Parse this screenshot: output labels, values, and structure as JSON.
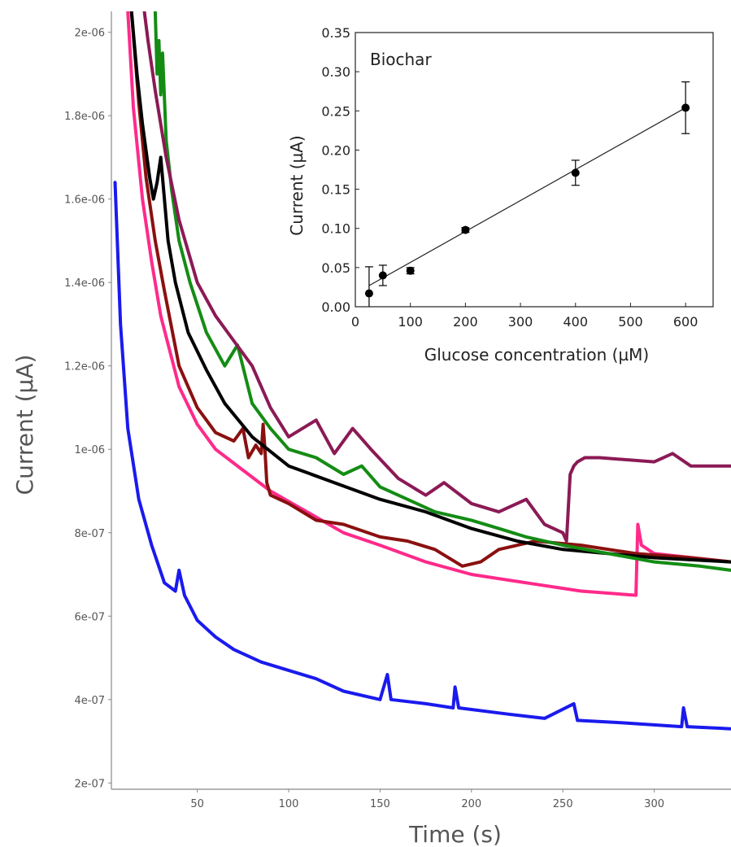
{
  "chart_data": [
    {
      "type": "line",
      "xlabel": "Time (s)",
      "ylabel": "Current (µA)",
      "xlim": [
        3,
        342
      ],
      "ylim": [
        1.85e-07,
        2.05e-06
      ],
      "x_ticks": [
        50,
        100,
        150,
        200,
        250,
        300
      ],
      "x_tick_labels": [
        "50",
        "100",
        "150",
        "200",
        "250",
        "300"
      ],
      "y_ticks": [
        2e-07,
        4e-07,
        6e-07,
        8e-07,
        1e-06,
        1.2e-06,
        1.4e-06,
        1.6e-06,
        1.8e-06,
        2e-06
      ],
      "y_tick_labels": [
        "2e-07",
        "4e-07",
        "6e-07",
        "8e-07",
        "1e-06",
        "1.2e-06",
        "1.4e-06",
        "1.6e-06",
        "1.8e-06",
        "2e-06"
      ],
      "grid": false,
      "series": [
        {
          "color": "#1a1aee",
          "x": [
            5,
            8,
            12,
            18,
            25,
            32,
            38,
            40,
            43,
            50,
            60,
            70,
            85,
            100,
            115,
            130,
            150,
            154,
            156,
            175,
            190,
            191,
            193,
            220,
            240,
            256,
            258,
            280,
            315,
            316,
            318,
            342
          ],
          "y": [
            1.64e-06,
            1.3e-06,
            1.05e-06,
            8.8e-07,
            7.7e-07,
            6.8e-07,
            6.6e-07,
            7.1e-07,
            6.5e-07,
            5.9e-07,
            5.5e-07,
            5.2e-07,
            4.9e-07,
            4.7e-07,
            4.5e-07,
            4.2e-07,
            4e-07,
            4.6e-07,
            4e-07,
            3.9e-07,
            3.8e-07,
            4.3e-07,
            3.8e-07,
            3.65e-07,
            3.55e-07,
            3.9e-07,
            3.5e-07,
            3.45e-07,
            3.35e-07,
            3.8e-07,
            3.35e-07,
            3.3e-07
          ]
        },
        {
          "color": "#ff2a8a",
          "x": [
            12,
            15,
            20,
            25,
            30,
            40,
            50,
            60,
            75,
            90,
            110,
            130,
            150,
            175,
            200,
            230,
            260,
            290,
            291,
            293,
            300,
            342
          ],
          "y": [
            2.05e-06,
            1.82e-06,
            1.6e-06,
            1.45e-06,
            1.32e-06,
            1.15e-06,
            1.06e-06,
            1e-06,
            9.5e-07,
            9e-07,
            8.5e-07,
            8e-07,
            7.7e-07,
            7.3e-07,
            7e-07,
            6.8e-07,
            6.6e-07,
            6.5e-07,
            8.2e-07,
            7.7e-07,
            7.5e-07,
            7.3e-07
          ]
        },
        {
          "color": "#8b1010",
          "x": [
            14,
            18,
            22,
            27,
            32,
            40,
            50,
            60,
            70,
            75,
            78,
            82,
            85,
            86,
            87,
            88,
            90,
            100,
            115,
            130,
            150,
            165,
            180,
            195,
            205,
            215,
            235,
            260,
            290,
            320,
            342
          ],
          "y": [
            2.05e-06,
            1.83e-06,
            1.65e-06,
            1.5e-06,
            1.38e-06,
            1.2e-06,
            1.1e-06,
            1.04e-06,
            1.02e-06,
            1.05e-06,
            9.8e-07,
            1.01e-06,
            9.9e-07,
            1.06e-06,
            1e-06,
            9.2e-07,
            8.9e-07,
            8.7e-07,
            8.3e-07,
            8.2e-07,
            7.9e-07,
            7.8e-07,
            7.6e-07,
            7.2e-07,
            7.3e-07,
            7.6e-07,
            7.8e-07,
            7.7e-07,
            7.5e-07,
            7.4e-07,
            7.3e-07
          ]
        },
        {
          "color": "#000000",
          "x": [
            14,
            17,
            20,
            24,
            26,
            28,
            30,
            32,
            34,
            38,
            45,
            55,
            65,
            80,
            100,
            125,
            150,
            175,
            200,
            225,
            250,
            275,
            300,
            342
          ],
          "y": [
            2.05e-06,
            1.9e-06,
            1.78e-06,
            1.65e-06,
            1.6e-06,
            1.64e-06,
            1.7e-06,
            1.6e-06,
            1.5e-06,
            1.4e-06,
            1.28e-06,
            1.19e-06,
            1.11e-06,
            1.03e-06,
            9.6e-07,
            9.2e-07,
            8.8e-07,
            8.5e-07,
            8.1e-07,
            7.8e-07,
            7.6e-07,
            7.5e-07,
            7.4e-07,
            7.3e-07
          ]
        },
        {
          "color": "#148c14",
          "x": [
            27,
            28,
            29,
            30,
            31,
            33,
            36,
            40,
            46,
            55,
            65,
            72,
            80,
            90,
            100,
            115,
            130,
            140,
            150,
            165,
            180,
            200,
            215,
            230,
            250,
            275,
            300,
            325,
            342
          ],
          "y": [
            2.05e-06,
            1.9e-06,
            1.98e-06,
            1.85e-06,
            1.95e-06,
            1.74e-06,
            1.62e-06,
            1.5e-06,
            1.4e-06,
            1.28e-06,
            1.2e-06,
            1.25e-06,
            1.11e-06,
            1.05e-06,
            1e-06,
            9.8e-07,
            9.4e-07,
            9.6e-07,
            9.1e-07,
            8.8e-07,
            8.5e-07,
            8.3e-07,
            8.1e-07,
            7.9e-07,
            7.7e-07,
            7.5e-07,
            7.3e-07,
            7.2e-07,
            7.1e-07
          ]
        },
        {
          "color": "#8b1a55",
          "x": [
            21,
            23,
            27,
            33,
            40,
            50,
            60,
            70,
            80,
            90,
            100,
            115,
            125,
            135,
            145,
            160,
            175,
            185,
            200,
            215,
            230,
            240,
            250,
            252,
            254,
            256,
            258,
            262,
            270,
            300,
            310,
            320,
            342
          ],
          "y": [
            2.05e-06,
            1.98e-06,
            1.86e-06,
            1.7e-06,
            1.55e-06,
            1.4e-06,
            1.32e-06,
            1.26e-06,
            1.2e-06,
            1.1e-06,
            1.03e-06,
            1.07e-06,
            9.9e-07,
            1.05e-06,
            1e-06,
            9.3e-07,
            8.9e-07,
            9.2e-07,
            8.7e-07,
            8.5e-07,
            8.8e-07,
            8.2e-07,
            8e-07,
            7.8e-07,
            9.4e-07,
            9.6e-07,
            9.7e-07,
            9.8e-07,
            9.8e-07,
            9.7e-07,
            9.9e-07,
            9.6e-07,
            9.6e-07
          ]
        }
      ]
    },
    {
      "type": "scatter",
      "title": "Biochar",
      "xlabel": "Glucose concentration (µM)",
      "ylabel": "Current (µA)",
      "xlim": [
        0,
        650
      ],
      "ylim": [
        0,
        0.35
      ],
      "x_ticks": [
        0,
        100,
        200,
        300,
        400,
        500,
        600
      ],
      "y_ticks": [
        0.0,
        0.05,
        0.1,
        0.15,
        0.2,
        0.25,
        0.3,
        0.35
      ],
      "y_tick_labels": [
        "0.00",
        "0.05",
        "0.10",
        "0.15",
        "0.20",
        "0.25",
        "0.30",
        "0.35"
      ],
      "grid": false,
      "points": {
        "x": [
          25,
          50,
          100,
          200,
          400,
          600
        ],
        "y": [
          0.017,
          0.04,
          0.046,
          0.098,
          0.171,
          0.254
        ],
        "error": [
          0.034,
          0.013,
          0.004,
          0.003,
          0.016,
          0.033
        ]
      },
      "fit_line": {
        "x": [
          25,
          600
        ],
        "y": [
          0.027,
          0.254
        ]
      }
    }
  ]
}
